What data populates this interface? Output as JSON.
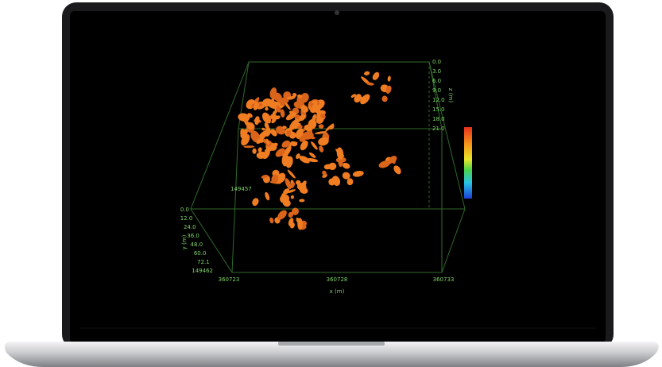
{
  "screen": {
    "plot": {
      "x_axis_label": "x (m)",
      "x_ticks": [
        "360723",
        "360728",
        "360733"
      ],
      "y_axis_label": "y (m)",
      "y_ticks": [
        "0.0",
        "12.0",
        "24.0",
        "36.0",
        "48.0",
        "60.0",
        "72.1",
        "149462"
      ],
      "y_back_label": "149457",
      "z_axis_label": "z (m)",
      "z_ticks": [
        "0.0",
        "3.0",
        "6.0",
        "9.0",
        "12.0",
        "15.0",
        "18.0",
        "21.0"
      ]
    }
  }
}
